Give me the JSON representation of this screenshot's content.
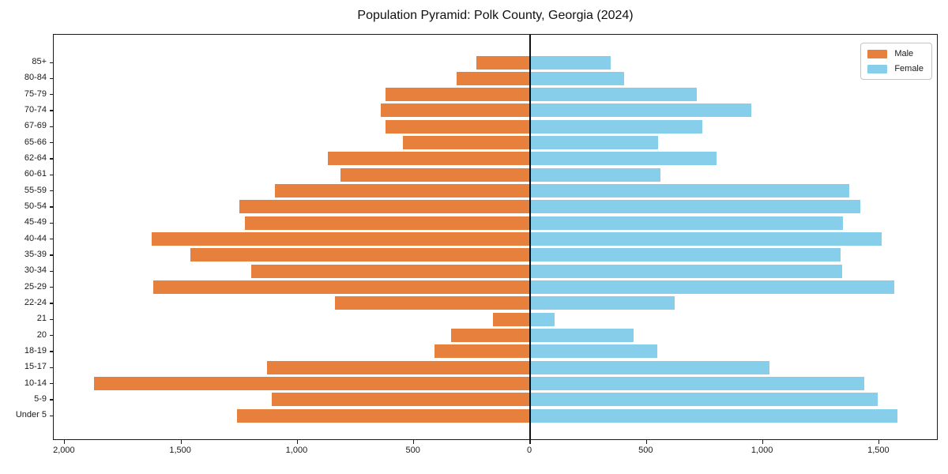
{
  "title": "Population Pyramid: Polk County, Georgia (2024)",
  "legend": {
    "male_label": "Male",
    "female_label": "Female"
  },
  "colors": {
    "male": "#E8803D",
    "female": "#87CEEB",
    "axis": "#1a1a1a"
  },
  "chart_data": {
    "type": "bar",
    "subtype": "population-pyramid",
    "title": "Population Pyramid: Polk County, Georgia (2024)",
    "categories": [
      "85+",
      "80-84",
      "75-79",
      "70-74",
      "67-69",
      "65-66",
      "62-64",
      "60-61",
      "55-59",
      "50-54",
      "45-49",
      "40-44",
      "35-39",
      "30-34",
      "25-29",
      "22-24",
      "21",
      "20",
      "18-19",
      "15-17",
      "10-14",
      "5-9",
      "Under 5"
    ],
    "series": [
      {
        "name": "Male",
        "side": "left",
        "color": "#E8803D",
        "values": [
          230,
          315,
          620,
          640,
          620,
          545,
          870,
          815,
          1095,
          1250,
          1225,
          1625,
          1460,
          1200,
          1620,
          840,
          160,
          340,
          410,
          1130,
          1875,
          1110,
          1260
        ]
      },
      {
        "name": "Female",
        "side": "right",
        "color": "#87CEEB",
        "values": [
          345,
          405,
          715,
          950,
          740,
          550,
          800,
          560,
          1370,
          1420,
          1345,
          1510,
          1335,
          1340,
          1565,
          620,
          105,
          445,
          545,
          1030,
          1435,
          1495,
          1580
        ]
      }
    ],
    "x_ticks": [
      -2000,
      -1500,
      -1000,
      -500,
      0,
      500,
      1000,
      1500
    ],
    "x_tick_labels": [
      "2,000",
      "1,500",
      "1,000",
      "500",
      "0",
      "500",
      "1,000",
      "1,500"
    ],
    "xlim": [
      -2047,
      1755
    ],
    "grid": false,
    "legend_position": "upper right",
    "xlabel": "",
    "ylabel": ""
  }
}
